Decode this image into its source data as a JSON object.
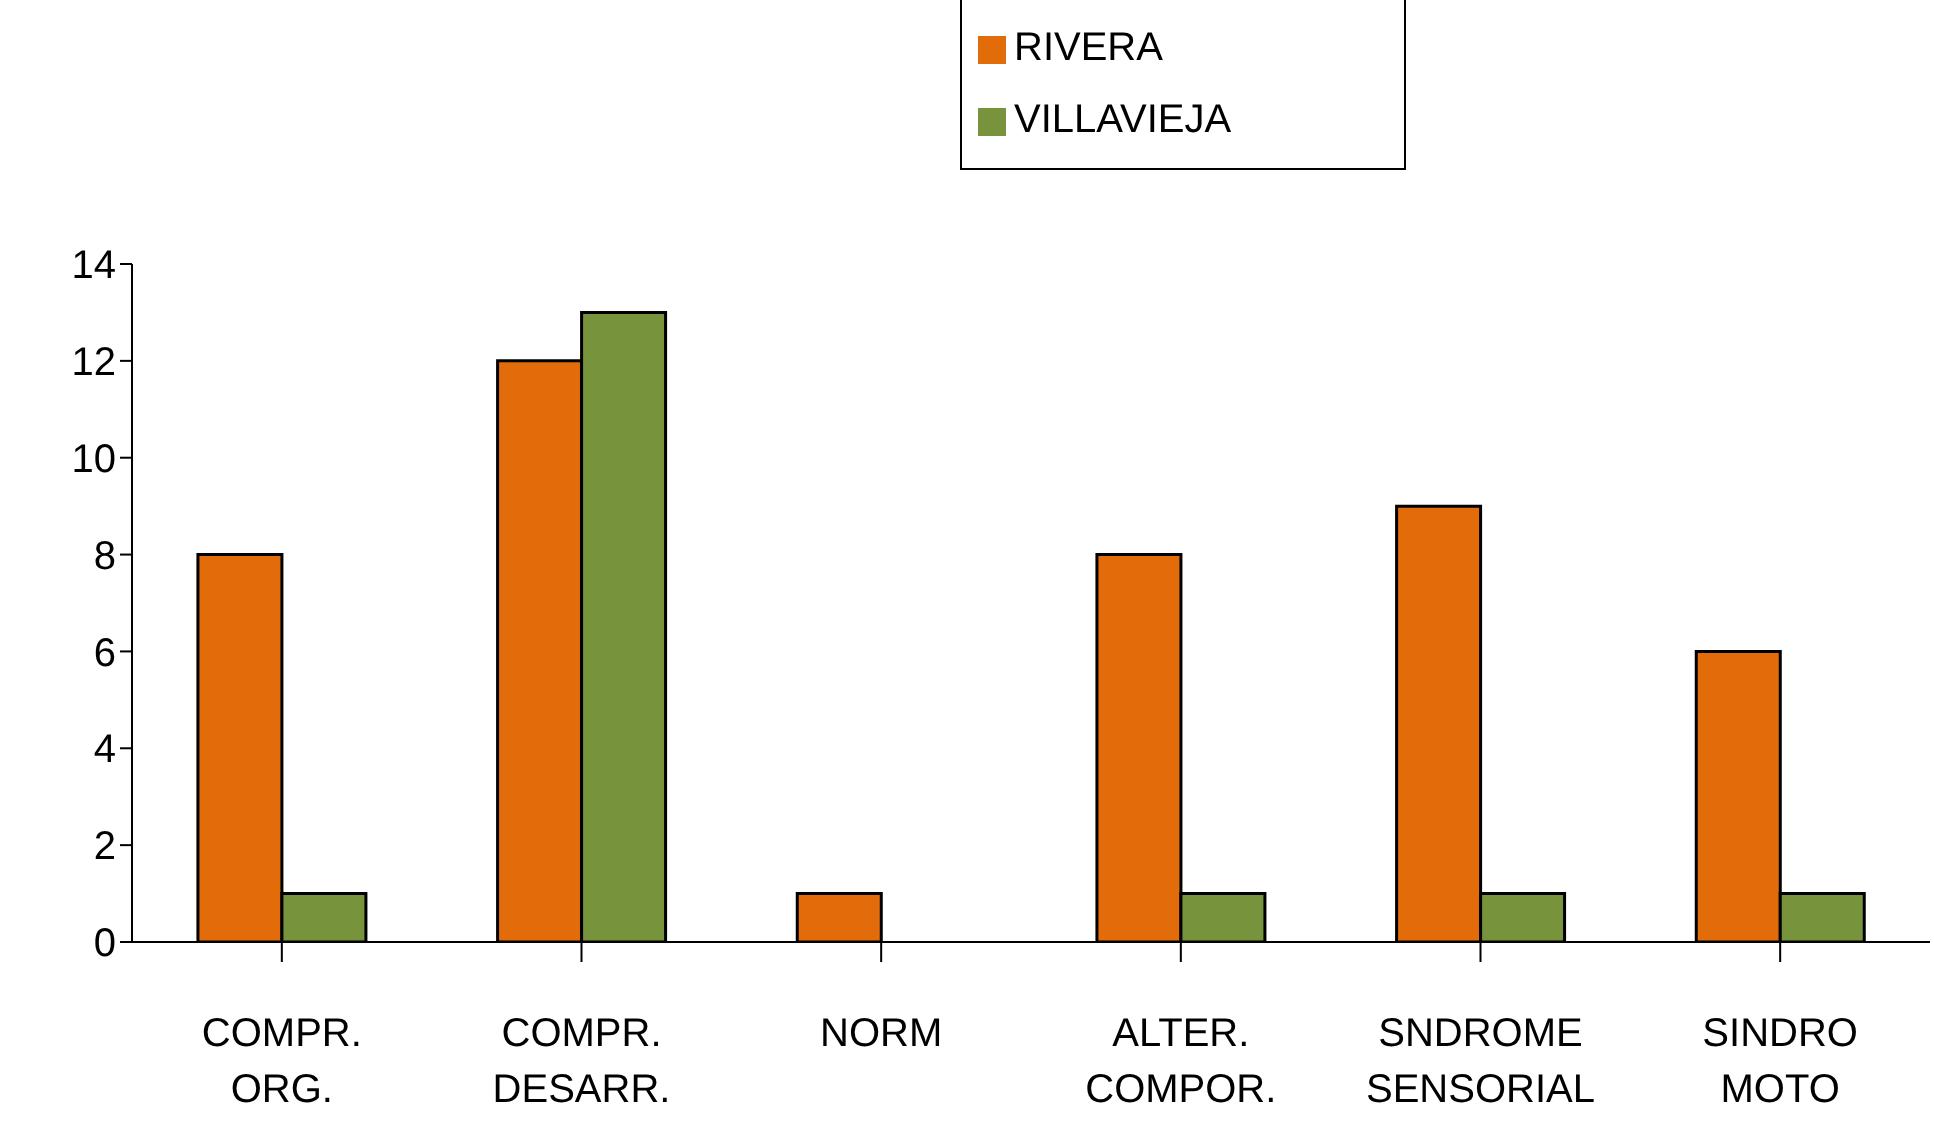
{
  "chart_data": {
    "type": "bar",
    "categories": [
      "COMPR. ORG.",
      "COMPR. DESARR.",
      "NORM",
      "ALTER. COMPOR.",
      "SNDROME SENSORIAL",
      "SINDRO MOTO"
    ],
    "series": [
      {
        "name": "RIVERA",
        "color": "#e36c0a",
        "values": [
          8,
          12,
          1,
          8,
          9,
          6
        ]
      },
      {
        "name": "VILLAVIEJA",
        "color": "#77933c",
        "values": [
          1,
          13,
          0,
          1,
          1,
          1
        ]
      }
    ],
    "ylim": [
      0,
      14
    ],
    "yticks": [
      0,
      2,
      4,
      6,
      8,
      10,
      12,
      14
    ],
    "grid": false,
    "legend": "top"
  }
}
